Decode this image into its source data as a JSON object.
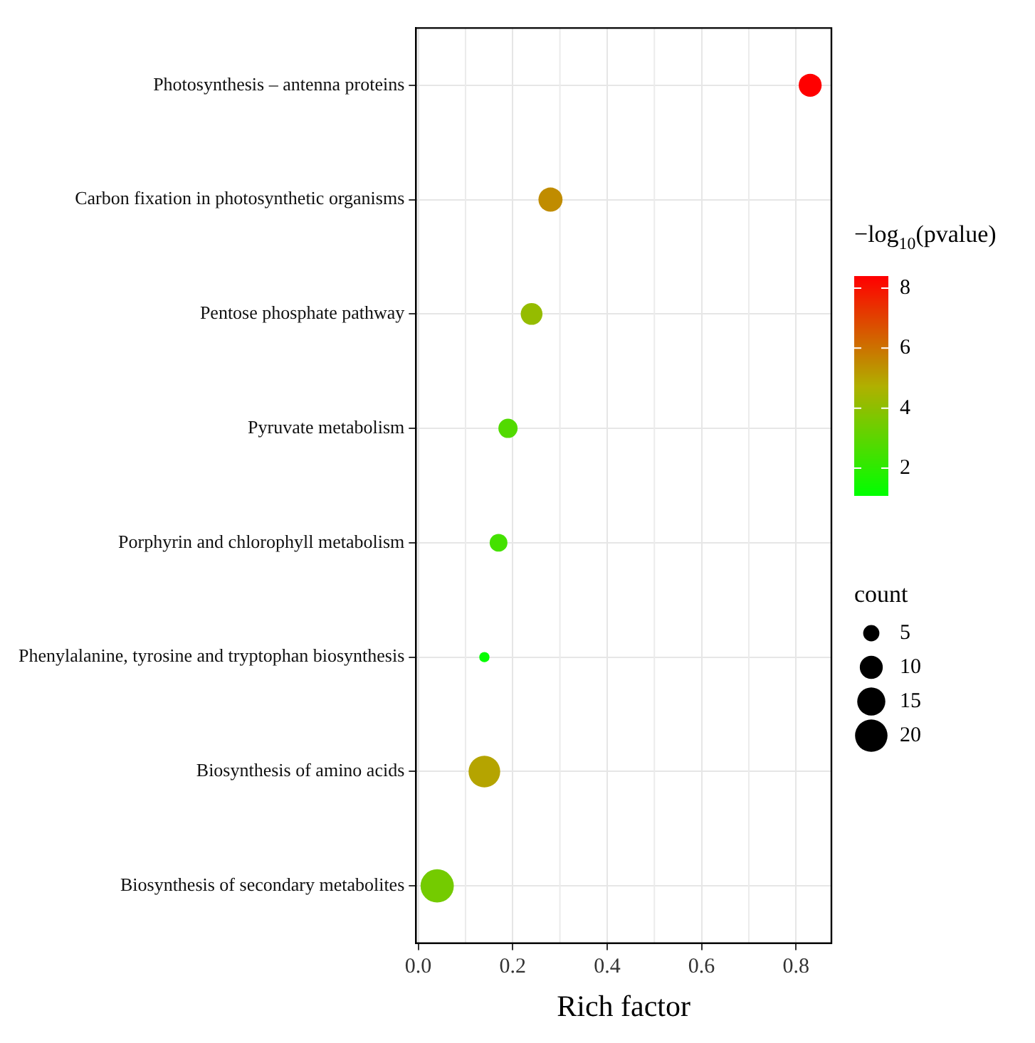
{
  "chart_data": {
    "type": "bubble",
    "orientation": "horizontal",
    "categories": [
      "Photosynthesis – antenna proteins",
      "Carbon fixation in photosynthetic organisms",
      "Pentose phosphate pathway",
      "Pyruvate metabolism",
      "Porphyrin and chlorophyll metabolism",
      "Phenylalanine, tyrosine and tryptophan biosynthesis",
      "Biosynthesis of amino acids",
      "Biosynthesis of secondary metabolites"
    ],
    "values": [
      0.83,
      0.28,
      0.24,
      0.19,
      0.17,
      0.14,
      0.14,
      0.04
    ],
    "cvalues": [
      8.5,
      5.5,
      4.2,
      2.8,
      2.5,
      1.2,
      5.0,
      3.5
    ],
    "sizes": [
      10,
      11,
      9,
      7,
      6,
      2,
      19,
      21
    ],
    "size_legend": [
      5,
      10,
      15,
      20
    ],
    "xlim": [
      -0.005,
      0.875
    ],
    "xticks": [
      {
        "value": 0,
        "label": "0.0"
      },
      {
        "value": 0.2,
        "label": "0.2"
      },
      {
        "value": 0.4,
        "label": "0.4"
      },
      {
        "value": 0.6,
        "label": "0.6"
      },
      {
        "value": 0.8,
        "label": "0.8"
      }
    ],
    "clim": [
      1.1,
      8.4
    ],
    "cticks": [
      2,
      4,
      6,
      8
    ],
    "xlabel": "Rich factor",
    "clabel": "−log$_{10}$(pvalue)",
    "legend_title": "count",
    "grid": true
  }
}
